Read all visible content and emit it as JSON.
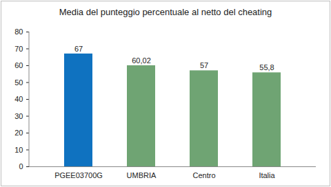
{
  "chart_data": {
    "type": "bar",
    "title": "Media del punteggio percentuale al netto del cheating",
    "categories": [
      "PGEE03700G",
      "UMBRIA",
      "Centro",
      "Italia"
    ],
    "values": [
      67,
      60.02,
      57,
      55.8
    ],
    "value_labels": [
      "67",
      "60,02",
      "57",
      "55,8"
    ],
    "colors": [
      "#0f72c0",
      "#6fa473",
      "#6fa473",
      "#6fa473"
    ],
    "ylim": [
      0,
      80
    ],
    "yticks": [
      0,
      10,
      20,
      30,
      40,
      50,
      60,
      70,
      80
    ],
    "grid": false,
    "data_labels": true
  }
}
